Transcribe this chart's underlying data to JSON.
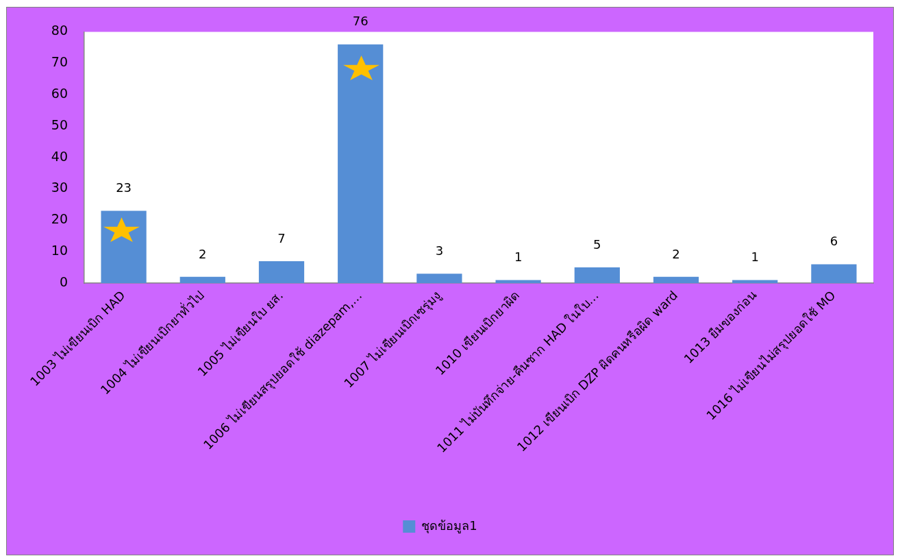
{
  "chart_data": {
    "type": "bar",
    "categories": [
      "1003 ไม่เขียนเบิก HAD",
      "1004 ไม่เขียนเบิกยาทั่วไป",
      "1005 ไม่เขียนใบ ยส.",
      "1006 ไม่เขียนสรุปยอดใช้ diazepam,…",
      "1007 ไม่เขียนเบิกเซรุ่มงู",
      "1010 เขียนเบิกยาผิด",
      "1011 ไม่บันทึกจ่าย-คืนซาก HAD ในใบ…",
      "1012 เขียนเบิก DZP ผิดคนหรือผิด ward",
      "1013 ยืมของก่อน",
      "1016 ไม่เขียนไม่สรุปยอดใช้ MO"
    ],
    "series": [
      {
        "name": "ชุดข้อมูล1",
        "color": "#558ed5",
        "values": [
          23,
          2,
          7,
          76,
          3,
          1,
          5,
          2,
          1,
          6
        ]
      }
    ],
    "ylim": [
      0,
      80
    ],
    "yticks": [
      0,
      10,
      20,
      30,
      40,
      50,
      60,
      70,
      80
    ],
    "data_labels": true,
    "legend": "bottom"
  }
}
